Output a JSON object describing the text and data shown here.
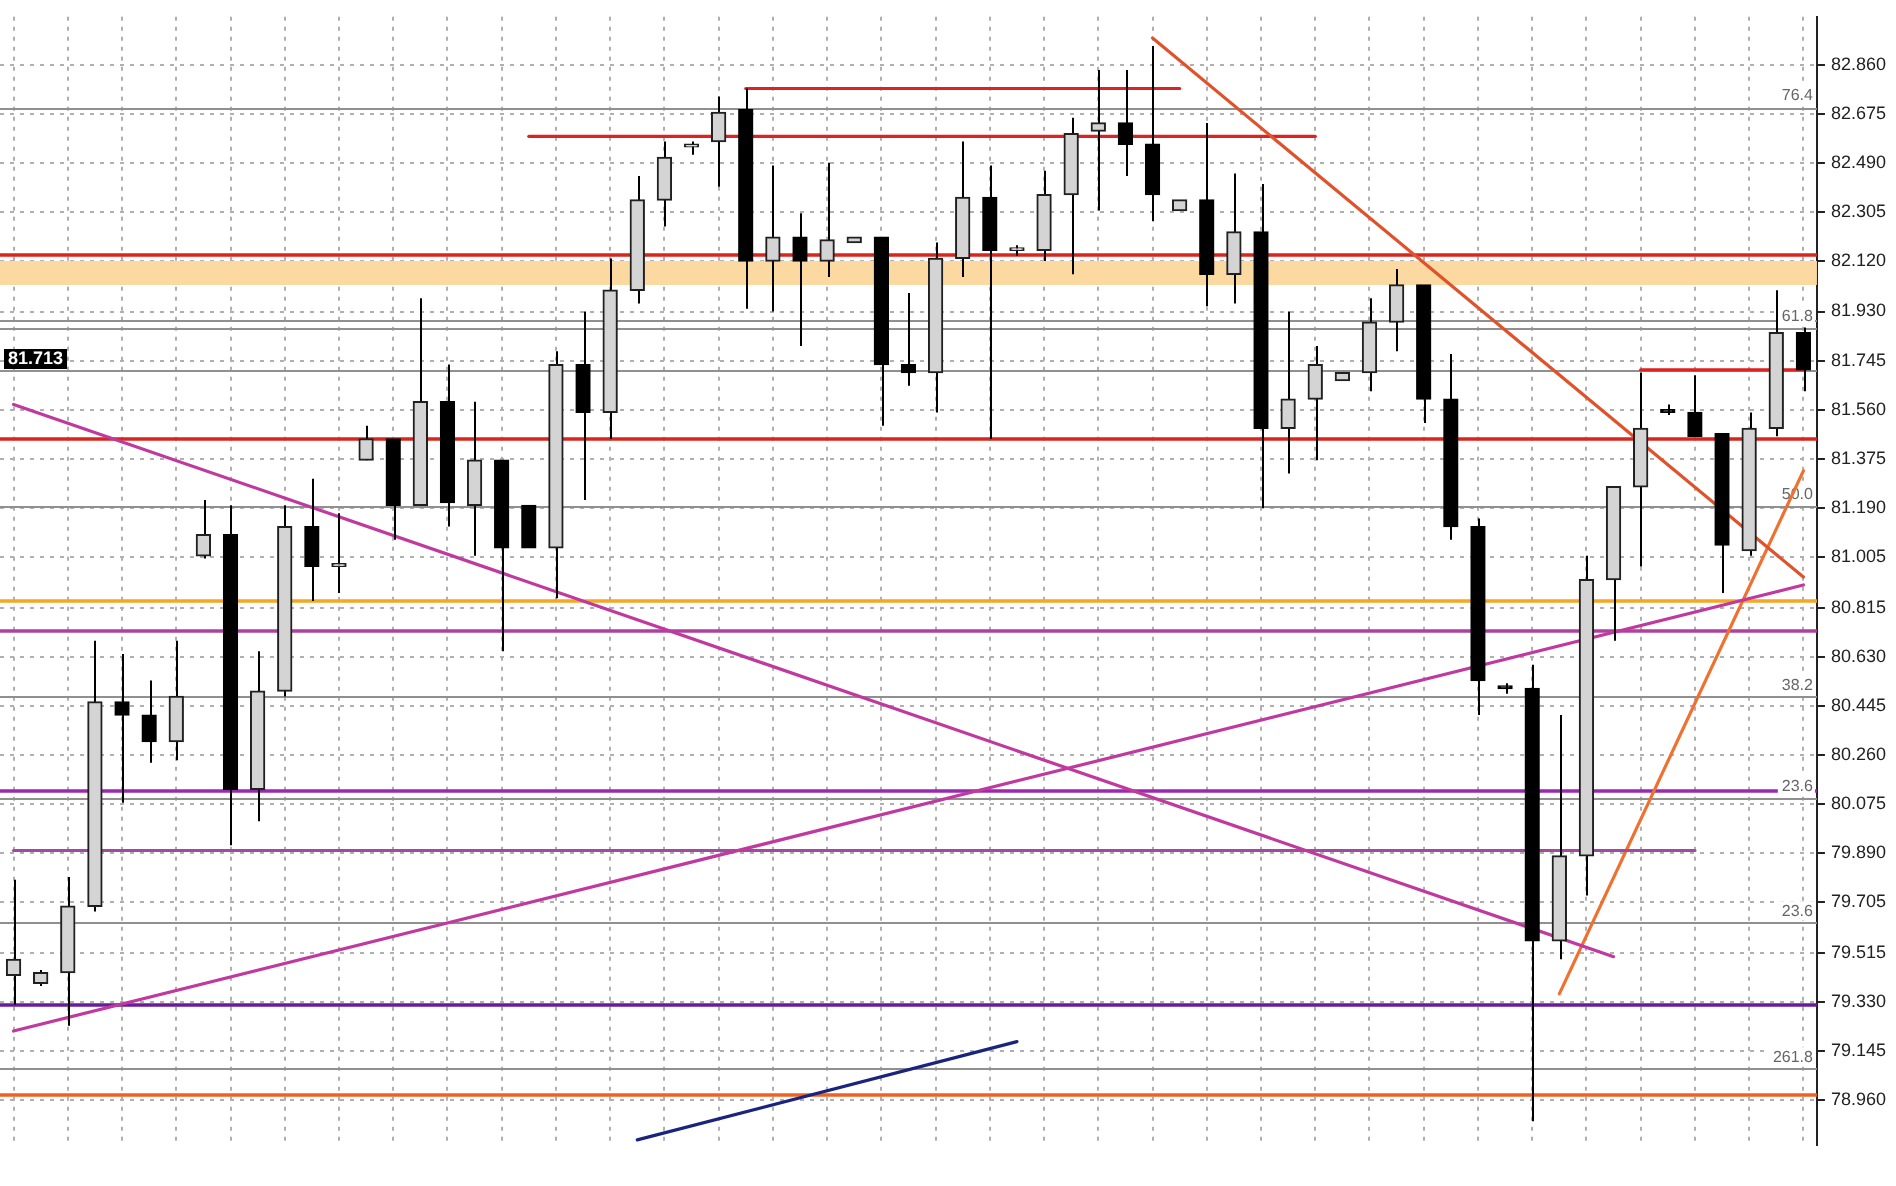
{
  "chart_data": {
    "type": "candlestick",
    "categories": [
      null,
      null,
      null,
      null,
      null,
      null,
      null,
      null,
      null,
      null,
      null,
      null,
      null,
      null,
      null,
      null,
      null,
      null,
      null,
      null,
      null,
      null,
      null,
      null,
      null,
      null,
      null,
      null,
      null,
      null,
      null,
      null,
      null,
      null,
      null,
      null,
      null,
      null,
      null,
      null,
      null,
      null,
      null,
      null,
      null,
      null,
      null,
      null,
      null,
      null,
      null,
      null,
      null,
      null,
      null,
      null,
      null,
      null,
      null,
      null,
      null,
      null,
      null,
      null,
      null,
      null,
      null
    ],
    "ohlc": [
      [
        79.43,
        79.79,
        79.32,
        79.49
      ],
      [
        79.4,
        79.45,
        79.39,
        79.44
      ],
      [
        79.44,
        79.8,
        79.24,
        79.69
      ],
      [
        79.69,
        80.69,
        79.67,
        80.46
      ],
      [
        80.46,
        80.64,
        80.08,
        80.41
      ],
      [
        80.41,
        80.54,
        80.23,
        80.31
      ],
      [
        80.31,
        80.69,
        80.24,
        80.48
      ],
      [
        81.01,
        81.22,
        81.0,
        81.09
      ],
      [
        81.09,
        81.2,
        79.92,
        80.13
      ],
      [
        80.13,
        80.65,
        80.01,
        80.5
      ],
      [
        80.5,
        81.2,
        80.48,
        81.12
      ],
      [
        81.12,
        81.3,
        80.84,
        80.97
      ],
      [
        80.97,
        81.17,
        80.87,
        80.98
      ],
      [
        81.37,
        81.5,
        81.37,
        81.45
      ],
      [
        81.45,
        81.45,
        81.07,
        81.2
      ],
      [
        81.2,
        81.98,
        81.2,
        81.59
      ],
      [
        81.59,
        81.73,
        81.12,
        81.21
      ],
      [
        81.2,
        81.59,
        81.01,
        81.37
      ],
      [
        81.37,
        81.37,
        80.65,
        81.04
      ],
      [
        81.2,
        81.2,
        81.04,
        81.04
      ],
      [
        81.04,
        81.78,
        80.85,
        81.73
      ],
      [
        81.73,
        81.93,
        81.22,
        81.55
      ],
      [
        81.55,
        82.13,
        81.45,
        82.01
      ],
      [
        82.01,
        82.44,
        81.96,
        82.35
      ],
      [
        82.35,
        82.57,
        82.25,
        82.51
      ],
      [
        82.55,
        82.57,
        82.52,
        82.56
      ],
      [
        82.57,
        82.74,
        82.4,
        82.68
      ],
      [
        82.69,
        82.77,
        81.94,
        82.12
      ],
      [
        82.12,
        82.48,
        81.93,
        82.21
      ],
      [
        82.21,
        82.3,
        81.8,
        82.12
      ],
      [
        82.12,
        82.49,
        82.06,
        82.2
      ],
      [
        82.19,
        82.21,
        82.19,
        82.21
      ],
      [
        82.21,
        82.21,
        81.5,
        81.73
      ],
      [
        81.73,
        82.0,
        81.65,
        81.7
      ],
      [
        81.7,
        82.19,
        81.55,
        82.13
      ],
      [
        82.13,
        82.57,
        82.06,
        82.36
      ],
      [
        82.36,
        82.48,
        81.45,
        82.16
      ],
      [
        82.16,
        82.18,
        82.14,
        82.17
      ],
      [
        82.16,
        82.46,
        82.12,
        82.37
      ],
      [
        82.37,
        82.66,
        82.07,
        82.6
      ],
      [
        82.61,
        82.84,
        82.31,
        82.64
      ],
      [
        82.64,
        82.84,
        82.44,
        82.56
      ],
      [
        82.56,
        82.93,
        82.27,
        82.37
      ],
      [
        82.31,
        82.35,
        82.31,
        82.35
      ],
      [
        82.35,
        82.64,
        81.95,
        82.07
      ],
      [
        82.07,
        82.45,
        81.96,
        82.23
      ],
      [
        82.23,
        82.41,
        81.19,
        81.49
      ],
      [
        81.49,
        81.93,
        81.32,
        81.6
      ],
      [
        81.6,
        81.8,
        81.37,
        81.73
      ],
      [
        81.67,
        81.7,
        81.67,
        81.7
      ],
      [
        81.7,
        81.98,
        81.63,
        81.89
      ],
      [
        81.89,
        82.09,
        81.78,
        82.03
      ],
      [
        82.03,
        82.03,
        81.51,
        81.6
      ],
      [
        81.6,
        81.77,
        81.07,
        81.12
      ],
      [
        81.12,
        81.15,
        80.41,
        80.54
      ],
      [
        80.52,
        80.53,
        80.49,
        80.51
      ],
      [
        80.51,
        80.6,
        78.88,
        79.56
      ],
      [
        79.56,
        80.41,
        79.49,
        79.88
      ],
      [
        79.88,
        81.01,
        79.73,
        80.92
      ],
      [
        80.92,
        81.27,
        80.69,
        81.27
      ],
      [
        81.27,
        81.7,
        80.97,
        81.49
      ],
      [
        81.56,
        81.58,
        81.54,
        81.55
      ],
      [
        81.55,
        81.69,
        81.46,
        81.46
      ],
      [
        81.47,
        81.47,
        80.87,
        81.05
      ],
      [
        81.03,
        81.55,
        81.01,
        81.49
      ],
      [
        81.49,
        82.01,
        81.46,
        81.85
      ],
      [
        81.85,
        81.87,
        81.63,
        81.71
      ]
    ],
    "series": [
      {
        "type": "line",
        "color": "#c0399f",
        "values": [
          81.58,
          null,
          null,
          null,
          null,
          null,
          null,
          null,
          null,
          null,
          null,
          null,
          null,
          null,
          null,
          null,
          null,
          null,
          null,
          null,
          null,
          null,
          null,
          null,
          null,
          null,
          null,
          null,
          null,
          null,
          null,
          null,
          null,
          null,
          null,
          null,
          null,
          null,
          null,
          null,
          null,
          null,
          null,
          null,
          null,
          null,
          null,
          null,
          null,
          null,
          null,
          null,
          null,
          null,
          null,
          null,
          null,
          null,
          null,
          79.5,
          null,
          null,
          null,
          null,
          null,
          null,
          null
        ]
      },
      {
        "type": "line",
        "color": "#c0399f",
        "values": [
          79.22,
          null,
          null,
          null,
          null,
          null,
          null,
          null,
          null,
          null,
          null,
          null,
          null,
          null,
          null,
          null,
          null,
          null,
          null,
          null,
          null,
          null,
          null,
          null,
          null,
          null,
          null,
          null,
          null,
          null,
          null,
          null,
          null,
          null,
          null,
          null,
          null,
          null,
          null,
          null,
          null,
          null,
          null,
          null,
          null,
          null,
          null,
          null,
          null,
          null,
          null,
          null,
          null,
          null,
          null,
          null,
          null,
          null,
          null,
          null,
          null,
          null,
          null,
          null,
          null,
          null,
          80.9
        ]
      },
      {
        "type": "line",
        "color": "#a04aa0",
        "values": [
          79.9,
          null,
          null,
          null,
          null,
          null,
          null,
          null,
          null,
          null,
          null,
          null,
          null,
          null,
          null,
          null,
          null,
          null,
          null,
          null,
          null,
          null,
          null,
          null,
          null,
          null,
          null,
          null,
          null,
          null,
          null,
          null,
          null,
          null,
          null,
          null,
          null,
          null,
          null,
          null,
          null,
          null,
          null,
          null,
          null,
          null,
          null,
          null,
          null,
          null,
          null,
          null,
          null,
          null,
          null,
          null,
          null,
          null,
          null,
          null,
          null,
          null,
          79.9,
          null,
          null,
          null,
          null
        ]
      },
      {
        "type": "line",
        "color": "#1a237e",
        "values": [
          null,
          null,
          null,
          null,
          null,
          null,
          null,
          null,
          null,
          null,
          null,
          null,
          null,
          null,
          null,
          null,
          null,
          null,
          null,
          null,
          null,
          null,
          null,
          78.81,
          null,
          null,
          null,
          null,
          null,
          null,
          null,
          null,
          null,
          null,
          null,
          null,
          null,
          79.18,
          null,
          null,
          null,
          null,
          null,
          null,
          null,
          null,
          null,
          null,
          null,
          null,
          null,
          null,
          null,
          null,
          null,
          null,
          null,
          null,
          null,
          null,
          null,
          null,
          null,
          null,
          null,
          null,
          null
        ]
      },
      {
        "type": "line",
        "color": "#e0522a",
        "values": [
          null,
          null,
          null,
          null,
          null,
          null,
          null,
          null,
          null,
          null,
          null,
          null,
          null,
          null,
          null,
          null,
          null,
          null,
          null,
          null,
          null,
          null,
          null,
          null,
          null,
          null,
          null,
          null,
          null,
          null,
          null,
          null,
          null,
          null,
          null,
          null,
          null,
          null,
          null,
          null,
          null,
          null,
          82.96,
          null,
          null,
          null,
          null,
          null,
          null,
          null,
          null,
          null,
          null,
          null,
          null,
          null,
          null,
          null,
          null,
          null,
          null,
          null,
          null,
          null,
          null,
          null,
          80.93
        ]
      },
      {
        "type": "line",
        "color": "#f07030",
        "values": [
          null,
          null,
          null,
          null,
          null,
          null,
          null,
          null,
          null,
          null,
          null,
          null,
          null,
          null,
          null,
          null,
          null,
          null,
          null,
          null,
          null,
          null,
          null,
          null,
          null,
          null,
          null,
          null,
          null,
          null,
          null,
          null,
          null,
          null,
          null,
          null,
          null,
          null,
          null,
          null,
          null,
          null,
          null,
          null,
          null,
          null,
          null,
          null,
          null,
          null,
          null,
          null,
          null,
          null,
          null,
          null,
          null,
          79.36,
          null,
          null,
          null,
          null,
          null,
          null,
          null,
          null,
          81.33
        ]
      },
      {
        "type": "line",
        "color": "#dd2222",
        "values": [
          null,
          null,
          null,
          null,
          null,
          null,
          null,
          null,
          null,
          null,
          null,
          null,
          null,
          null,
          null,
          null,
          null,
          null,
          null,
          null,
          null,
          null,
          null,
          null,
          null,
          null,
          null,
          82.77,
          null,
          null,
          null,
          null,
          null,
          null,
          null,
          null,
          null,
          null,
          null,
          null,
          null,
          null,
          null,
          82.77,
          null,
          null,
          null,
          null,
          null,
          null,
          null,
          null,
          null,
          null,
          null,
          null,
          null,
          null,
          null,
          null,
          null,
          null,
          null,
          null,
          null,
          null,
          null
        ]
      },
      {
        "type": "line",
        "color": "#dd2222",
        "values": [
          null,
          null,
          null,
          null,
          null,
          null,
          null,
          null,
          null,
          null,
          null,
          null,
          null,
          null,
          null,
          null,
          null,
          null,
          null,
          82.59,
          null,
          null,
          null,
          null,
          null,
          null,
          null,
          null,
          null,
          null,
          null,
          null,
          null,
          null,
          null,
          null,
          null,
          null,
          null,
          null,
          null,
          null,
          null,
          null,
          null,
          null,
          null,
          null,
          82.59,
          null,
          null,
          null,
          null,
          null,
          null,
          null,
          null,
          null,
          null,
          null,
          null,
          null,
          null,
          null,
          null,
          null,
          null
        ]
      },
      {
        "type": "line",
        "color": "#dd2222",
        "values": [
          null,
          null,
          null,
          null,
          null,
          null,
          null,
          null,
          null,
          null,
          null,
          null,
          null,
          null,
          null,
          null,
          null,
          null,
          null,
          null,
          null,
          null,
          null,
          null,
          null,
          null,
          null,
          null,
          null,
          null,
          null,
          null,
          null,
          null,
          null,
          null,
          null,
          null,
          null,
          null,
          null,
          null,
          null,
          null,
          null,
          null,
          null,
          null,
          null,
          null,
          null,
          null,
          null,
          null,
          null,
          null,
          null,
          null,
          null,
          null,
          81.71,
          null,
          null,
          null,
          null,
          null,
          81.71
        ]
      }
    ],
    "bands": [
      {
        "axis": "y",
        "from": 82.03,
        "to": 82.12,
        "color": "#fbd9a0"
      }
    ],
    "ref_lines": [
      {
        "axis": "y",
        "value": 82.15,
        "color": "#d9261c"
      },
      {
        "axis": "y",
        "value": 81.45,
        "color": "#d9261c"
      },
      {
        "axis": "y",
        "value": 80.84,
        "color": "#f5a623"
      },
      {
        "axis": "y",
        "value": 80.73,
        "color": "#b0409f"
      },
      {
        "axis": "y",
        "value": 80.13,
        "color": "#9c27b0"
      },
      {
        "axis": "y",
        "value": 79.32,
        "color": "#6a1b9a"
      },
      {
        "axis": "y",
        "value": 78.98,
        "color": "#f06020"
      },
      {
        "axis": "y",
        "value": 82.7,
        "color": "#909090"
      },
      {
        "axis": "y",
        "value": 81.9,
        "color": "#909090"
      },
      {
        "axis": "y",
        "value": 81.87,
        "color": "#909090"
      },
      {
        "axis": "y",
        "value": 81.713,
        "label": "81.713",
        "color": "#909090"
      },
      {
        "axis": "y",
        "value": 81.2,
        "color": "#909090"
      },
      {
        "axis": "y",
        "value": 80.48,
        "color": "#909090"
      },
      {
        "axis": "y",
        "value": 80.1,
        "color": "#909090"
      },
      {
        "axis": "y",
        "value": 79.63,
        "color": "#909090"
      },
      {
        "axis": "y",
        "value": 79.08,
        "color": "#909090"
      }
    ],
    "annotations": [
      {
        "text": "76.4",
        "y": 82.7
      },
      {
        "text": "61.8",
        "y": 81.87
      },
      {
        "text": "50.0",
        "y": 81.2
      },
      {
        "text": "38.2",
        "y": 80.48
      },
      {
        "text": "23.6",
        "y": 80.1
      },
      {
        "text": "23.6",
        "y": 79.63
      },
      {
        "text": "261.8",
        "y": 79.08
      }
    ],
    "ylim": [
      78.79,
      83.04
    ],
    "yticks": [
      {
        "value": 78.96,
        "label": "78.960"
      },
      {
        "value": 79.145,
        "label": "79.145"
      },
      {
        "value": 79.33,
        "label": "79.330"
      },
      {
        "value": 79.515,
        "label": "79.515"
      },
      {
        "value": 79.705,
        "label": "79.705"
      },
      {
        "value": 79.89,
        "label": "79.890"
      },
      {
        "value": 80.075,
        "label": "80.075"
      },
      {
        "value": 80.26,
        "label": "80.260"
      },
      {
        "value": 80.445,
        "label": "80.445"
      },
      {
        "value": 80.63,
        "label": "80.630"
      },
      {
        "value": 80.815,
        "label": "80.815"
      },
      {
        "value": 81.005,
        "label": "81.005"
      },
      {
        "value": 81.19,
        "label": "81.190"
      },
      {
        "value": 81.375,
        "label": "81.375"
      },
      {
        "value": 81.56,
        "label": "81.560"
      },
      {
        "value": 81.745,
        "label": "81.745"
      },
      {
        "value": 81.93,
        "label": "81.930"
      },
      {
        "value": 82.12,
        "label": "82.120"
      },
      {
        "value": 82.305,
        "label": "82.305"
      },
      {
        "value": 82.49,
        "label": "82.490"
      },
      {
        "value": 82.675,
        "label": "82.675"
      },
      {
        "value": 82.86,
        "label": "82.860"
      }
    ],
    "grid": true,
    "marker": "none",
    "line_style": "solid"
  }
}
